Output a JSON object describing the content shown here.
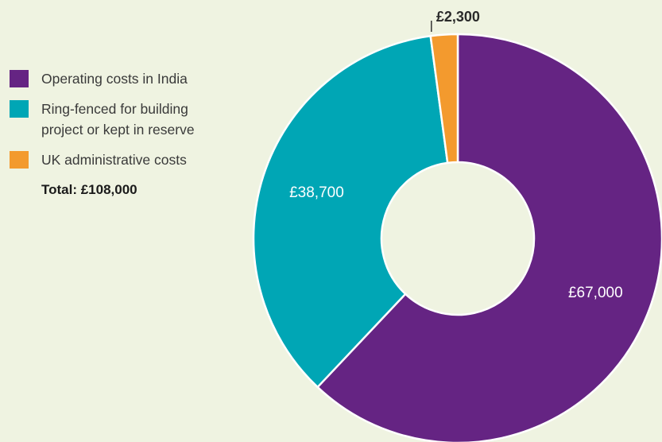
{
  "chart_data": {
    "type": "pie",
    "variant": "donut",
    "title": "",
    "currency": "£",
    "slices": [
      {
        "label": "Operating costs in India",
        "value": 67000,
        "display": "£67,000",
        "color": "#652483",
        "label_position": "inside"
      },
      {
        "label": "Ring-fenced for building project or kept in reserve",
        "value": 38700,
        "display": "£38,700",
        "color": "#00a6b5",
        "label_position": "inside"
      },
      {
        "label": "UK administrative costs",
        "value": 2300,
        "display": "£2,300",
        "color": "#f39a2e",
        "label_position": "outside"
      }
    ],
    "legend": {
      "placement": "top-left",
      "items": [
        {
          "line1": "Operating costs in India",
          "line2": "",
          "color": "#652483"
        },
        {
          "line1": "Ring-fenced for building",
          "line2": "project or kept in reserve",
          "color": "#00a6b5"
        },
        {
          "line1": "UK administrative costs",
          "line2": "",
          "color": "#f39a2e"
        }
      ]
    },
    "total_label": "Total: £108,000",
    "total_value": 108000
  }
}
